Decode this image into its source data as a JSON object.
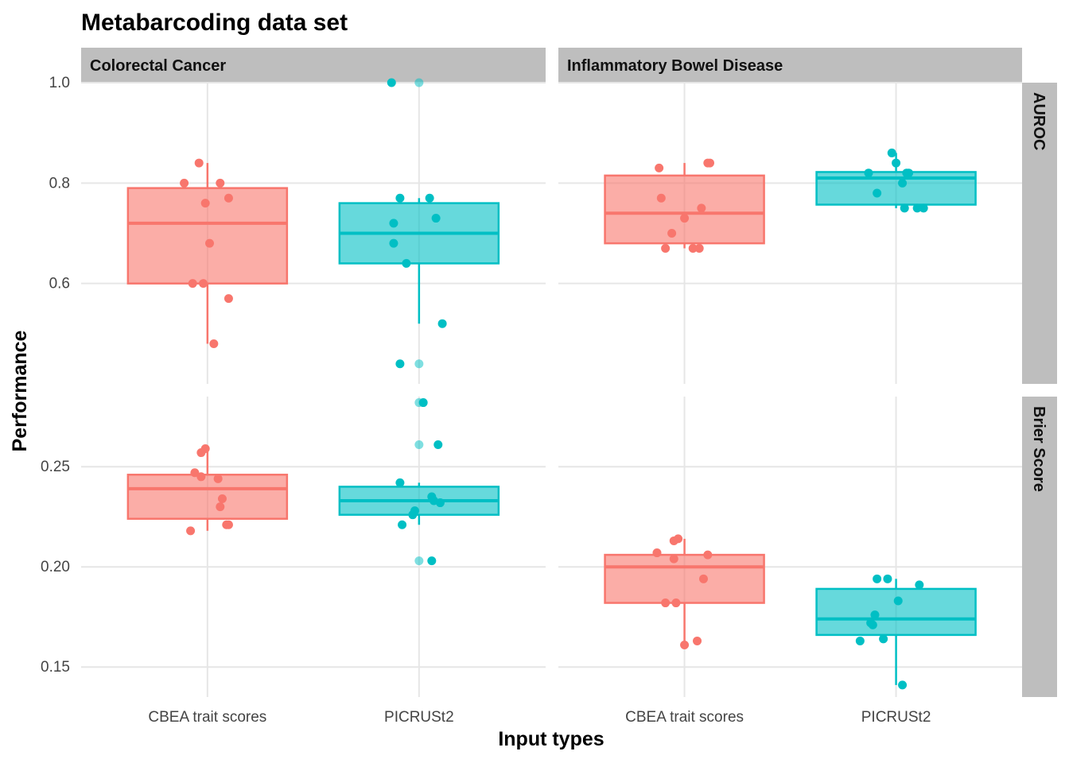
{
  "chart_data": {
    "type": "box",
    "title": "Metabarcoding data set",
    "xlabel": "Input types",
    "ylabel": "Performance",
    "categories": [
      "CBEA trait scores",
      "PICRUSt2"
    ],
    "facet_columns": [
      "Colorectal Cancer",
      "Inflammatory Bowel Disease"
    ],
    "facet_rows": [
      "AUROC",
      "Brier Score"
    ],
    "series_colors": {
      "CBEA trait scores": "#F8766D",
      "PICRUSt2": "#00BFC4"
    },
    "grid": true,
    "rows": [
      {
        "metric": "AUROC",
        "yticks": [
          0.6,
          0.8,
          1.0
        ],
        "tick_labels": [
          "0.6",
          "0.8",
          "1.0"
        ],
        "ylim": [
          0.4,
          1.0
        ],
        "panels": [
          {
            "disease": "Colorectal Cancer",
            "boxes": [
              {
                "category": "CBEA trait scores",
                "lower_whisker": 0.48,
                "q1": 0.6,
                "median": 0.72,
                "q3": 0.79,
                "upper_whisker": 0.84,
                "outliers": []
              },
              {
                "category": "PICRUSt2",
                "lower_whisker": 0.52,
                "q1": 0.64,
                "median": 0.7,
                "q3": 0.76,
                "upper_whisker": 0.77,
                "outliers": [
                  1.0,
                  0.44
                ]
              }
            ],
            "points": [
              {
                "category": "CBEA trait scores",
                "jitter": -0.11,
                "value": 0.8
              },
              {
                "category": "CBEA trait scores",
                "jitter": -0.04,
                "value": 0.84
              },
              {
                "category": "CBEA trait scores",
                "jitter": 0.06,
                "value": 0.8
              },
              {
                "category": "CBEA trait scores",
                "jitter": 0.1,
                "value": 0.77
              },
              {
                "category": "CBEA trait scores",
                "jitter": -0.01,
                "value": 0.76
              },
              {
                "category": "CBEA trait scores",
                "jitter": 0.01,
                "value": 0.68
              },
              {
                "category": "CBEA trait scores",
                "jitter": -0.07,
                "value": 0.6
              },
              {
                "category": "CBEA trait scores",
                "jitter": -0.02,
                "value": 0.6
              },
              {
                "category": "CBEA trait scores",
                "jitter": 0.1,
                "value": 0.57
              },
              {
                "category": "CBEA trait scores",
                "jitter": 0.03,
                "value": 0.48
              },
              {
                "category": "PICRUSt2",
                "jitter": -0.13,
                "value": 1.0
              },
              {
                "category": "PICRUSt2",
                "jitter": -0.09,
                "value": 0.77
              },
              {
                "category": "PICRUSt2",
                "jitter": 0.05,
                "value": 0.77
              },
              {
                "category": "PICRUSt2",
                "jitter": 0.08,
                "value": 0.73
              },
              {
                "category": "PICRUSt2",
                "jitter": -0.12,
                "value": 0.72
              },
              {
                "category": "PICRUSt2",
                "jitter": -0.12,
                "value": 0.68
              },
              {
                "category": "PICRUSt2",
                "jitter": -0.06,
                "value": 0.64
              },
              {
                "category": "PICRUSt2",
                "jitter": 0.11,
                "value": 0.52
              },
              {
                "category": "PICRUSt2",
                "jitter": -0.09,
                "value": 0.44
              }
            ]
          },
          {
            "disease": "Inflammatory Bowel Disease",
            "boxes": [
              {
                "category": "CBEA trait scores",
                "lower_whisker": 0.67,
                "q1": 0.68,
                "median": 0.74,
                "q3": 0.815,
                "upper_whisker": 0.84,
                "outliers": []
              },
              {
                "category": "PICRUSt2",
                "lower_whisker": 0.75,
                "q1": 0.757,
                "median": 0.81,
                "q3": 0.822,
                "upper_whisker": 0.86,
                "outliers": []
              }
            ],
            "points": [
              {
                "category": "CBEA trait scores",
                "jitter": -0.12,
                "value": 0.83
              },
              {
                "category": "CBEA trait scores",
                "jitter": 0.11,
                "value": 0.84
              },
              {
                "category": "CBEA trait scores",
                "jitter": 0.12,
                "value": 0.84
              },
              {
                "category": "CBEA trait scores",
                "jitter": -0.11,
                "value": 0.77
              },
              {
                "category": "CBEA trait scores",
                "jitter": 0.08,
                "value": 0.75
              },
              {
                "category": "CBEA trait scores",
                "jitter": -0.06,
                "value": 0.7
              },
              {
                "category": "CBEA trait scores",
                "jitter": 0.0,
                "value": 0.73
              },
              {
                "category": "CBEA trait scores",
                "jitter": -0.09,
                "value": 0.67
              },
              {
                "category": "CBEA trait scores",
                "jitter": 0.04,
                "value": 0.67
              },
              {
                "category": "CBEA trait scores",
                "jitter": 0.07,
                "value": 0.67
              },
              {
                "category": "PICRUSt2",
                "jitter": -0.13,
                "value": 0.82
              },
              {
                "category": "PICRUSt2",
                "jitter": -0.09,
                "value": 0.78
              },
              {
                "category": "PICRUSt2",
                "jitter": -0.02,
                "value": 0.86
              },
              {
                "category": "PICRUSt2",
                "jitter": 0.0,
                "value": 0.84
              },
              {
                "category": "PICRUSt2",
                "jitter": 0.05,
                "value": 0.82
              },
              {
                "category": "PICRUSt2",
                "jitter": 0.06,
                "value": 0.82
              },
              {
                "category": "PICRUSt2",
                "jitter": 0.03,
                "value": 0.8
              },
              {
                "category": "PICRUSt2",
                "jitter": 0.04,
                "value": 0.75
              },
              {
                "category": "PICRUSt2",
                "jitter": 0.1,
                "value": 0.75
              },
              {
                "category": "PICRUSt2",
                "jitter": 0.13,
                "value": 0.75
              }
            ]
          }
        ]
      },
      {
        "metric": "Brier Score",
        "yticks": [
          0.15,
          0.2,
          0.25
        ],
        "tick_labels": [
          "0.15",
          "0.20",
          "0.25"
        ],
        "ylim": [
          0.135,
          0.285
        ],
        "panels": [
          {
            "disease": "Colorectal Cancer",
            "boxes": [
              {
                "category": "CBEA trait scores",
                "lower_whisker": 0.218,
                "q1": 0.224,
                "median": 0.239,
                "q3": 0.246,
                "upper_whisker": 0.259,
                "outliers": []
              },
              {
                "category": "PICRUSt2",
                "lower_whisker": 0.221,
                "q1": 0.226,
                "median": 0.233,
                "q3": 0.24,
                "upper_whisker": 0.242,
                "outliers": [
                  0.282,
                  0.261,
                  0.203
                ]
              }
            ],
            "points": [
              {
                "category": "CBEA trait scores",
                "jitter": -0.06,
                "value": 0.247
              },
              {
                "category": "CBEA trait scores",
                "jitter": -0.03,
                "value": 0.257
              },
              {
                "category": "CBEA trait scores",
                "jitter": -0.01,
                "value": 0.259
              },
              {
                "category": "CBEA trait scores",
                "jitter": -0.03,
                "value": 0.245
              },
              {
                "category": "CBEA trait scores",
                "jitter": 0.05,
                "value": 0.244
              },
              {
                "category": "CBEA trait scores",
                "jitter": 0.07,
                "value": 0.234
              },
              {
                "category": "CBEA trait scores",
                "jitter": 0.06,
                "value": 0.23
              },
              {
                "category": "CBEA trait scores",
                "jitter": 0.09,
                "value": 0.221
              },
              {
                "category": "CBEA trait scores",
                "jitter": 0.1,
                "value": 0.221
              },
              {
                "category": "CBEA trait scores",
                "jitter": -0.08,
                "value": 0.218
              },
              {
                "category": "PICRUSt2",
                "jitter": 0.02,
                "value": 0.282
              },
              {
                "category": "PICRUSt2",
                "jitter": 0.09,
                "value": 0.261
              },
              {
                "category": "PICRUSt2",
                "jitter": -0.09,
                "value": 0.242
              },
              {
                "category": "PICRUSt2",
                "jitter": 0.06,
                "value": 0.235
              },
              {
                "category": "PICRUSt2",
                "jitter": 0.07,
                "value": 0.233
              },
              {
                "category": "PICRUSt2",
                "jitter": 0.1,
                "value": 0.232
              },
              {
                "category": "PICRUSt2",
                "jitter": -0.02,
                "value": 0.228
              },
              {
                "category": "PICRUSt2",
                "jitter": -0.08,
                "value": 0.221
              },
              {
                "category": "PICRUSt2",
                "jitter": -0.03,
                "value": 0.226
              },
              {
                "category": "PICRUSt2",
                "jitter": 0.06,
                "value": 0.203
              }
            ]
          },
          {
            "disease": "Inflammatory Bowel Disease",
            "boxes": [
              {
                "category": "CBEA trait scores",
                "lower_whisker": 0.161,
                "q1": 0.182,
                "median": 0.2,
                "q3": 0.206,
                "upper_whisker": 0.214,
                "outliers": []
              },
              {
                "category": "PICRUSt2",
                "lower_whisker": 0.141,
                "q1": 0.166,
                "median": 0.174,
                "q3": 0.189,
                "upper_whisker": 0.194,
                "outliers": []
              }
            ],
            "points": [
              {
                "category": "CBEA trait scores",
                "jitter": -0.13,
                "value": 0.207
              },
              {
                "category": "CBEA trait scores",
                "jitter": -0.05,
                "value": 0.213
              },
              {
                "category": "CBEA trait scores",
                "jitter": -0.03,
                "value": 0.214
              },
              {
                "category": "CBEA trait scores",
                "jitter": -0.05,
                "value": 0.204
              },
              {
                "category": "CBEA trait scores",
                "jitter": 0.11,
                "value": 0.206
              },
              {
                "category": "CBEA trait scores",
                "jitter": 0.09,
                "value": 0.194
              },
              {
                "category": "CBEA trait scores",
                "jitter": -0.09,
                "value": 0.182
              },
              {
                "category": "CBEA trait scores",
                "jitter": -0.04,
                "value": 0.182
              },
              {
                "category": "CBEA trait scores",
                "jitter": 0.0,
                "value": 0.161
              },
              {
                "category": "CBEA trait scores",
                "jitter": 0.06,
                "value": 0.163
              },
              {
                "category": "PICRUSt2",
                "jitter": -0.09,
                "value": 0.194
              },
              {
                "category": "PICRUSt2",
                "jitter": -0.04,
                "value": 0.194
              },
              {
                "category": "PICRUSt2",
                "jitter": 0.11,
                "value": 0.191
              },
              {
                "category": "PICRUSt2",
                "jitter": 0.01,
                "value": 0.183
              },
              {
                "category": "PICRUSt2",
                "jitter": -0.1,
                "value": 0.176
              },
              {
                "category": "PICRUSt2",
                "jitter": -0.11,
                "value": 0.171
              },
              {
                "category": "PICRUSt2",
                "jitter": -0.12,
                "value": 0.172
              },
              {
                "category": "PICRUSt2",
                "jitter": -0.06,
                "value": 0.164
              },
              {
                "category": "PICRUSt2",
                "jitter": -0.17,
                "value": 0.163
              },
              {
                "category": "PICRUSt2",
                "jitter": 0.03,
                "value": 0.141
              }
            ]
          }
        ]
      }
    ]
  }
}
